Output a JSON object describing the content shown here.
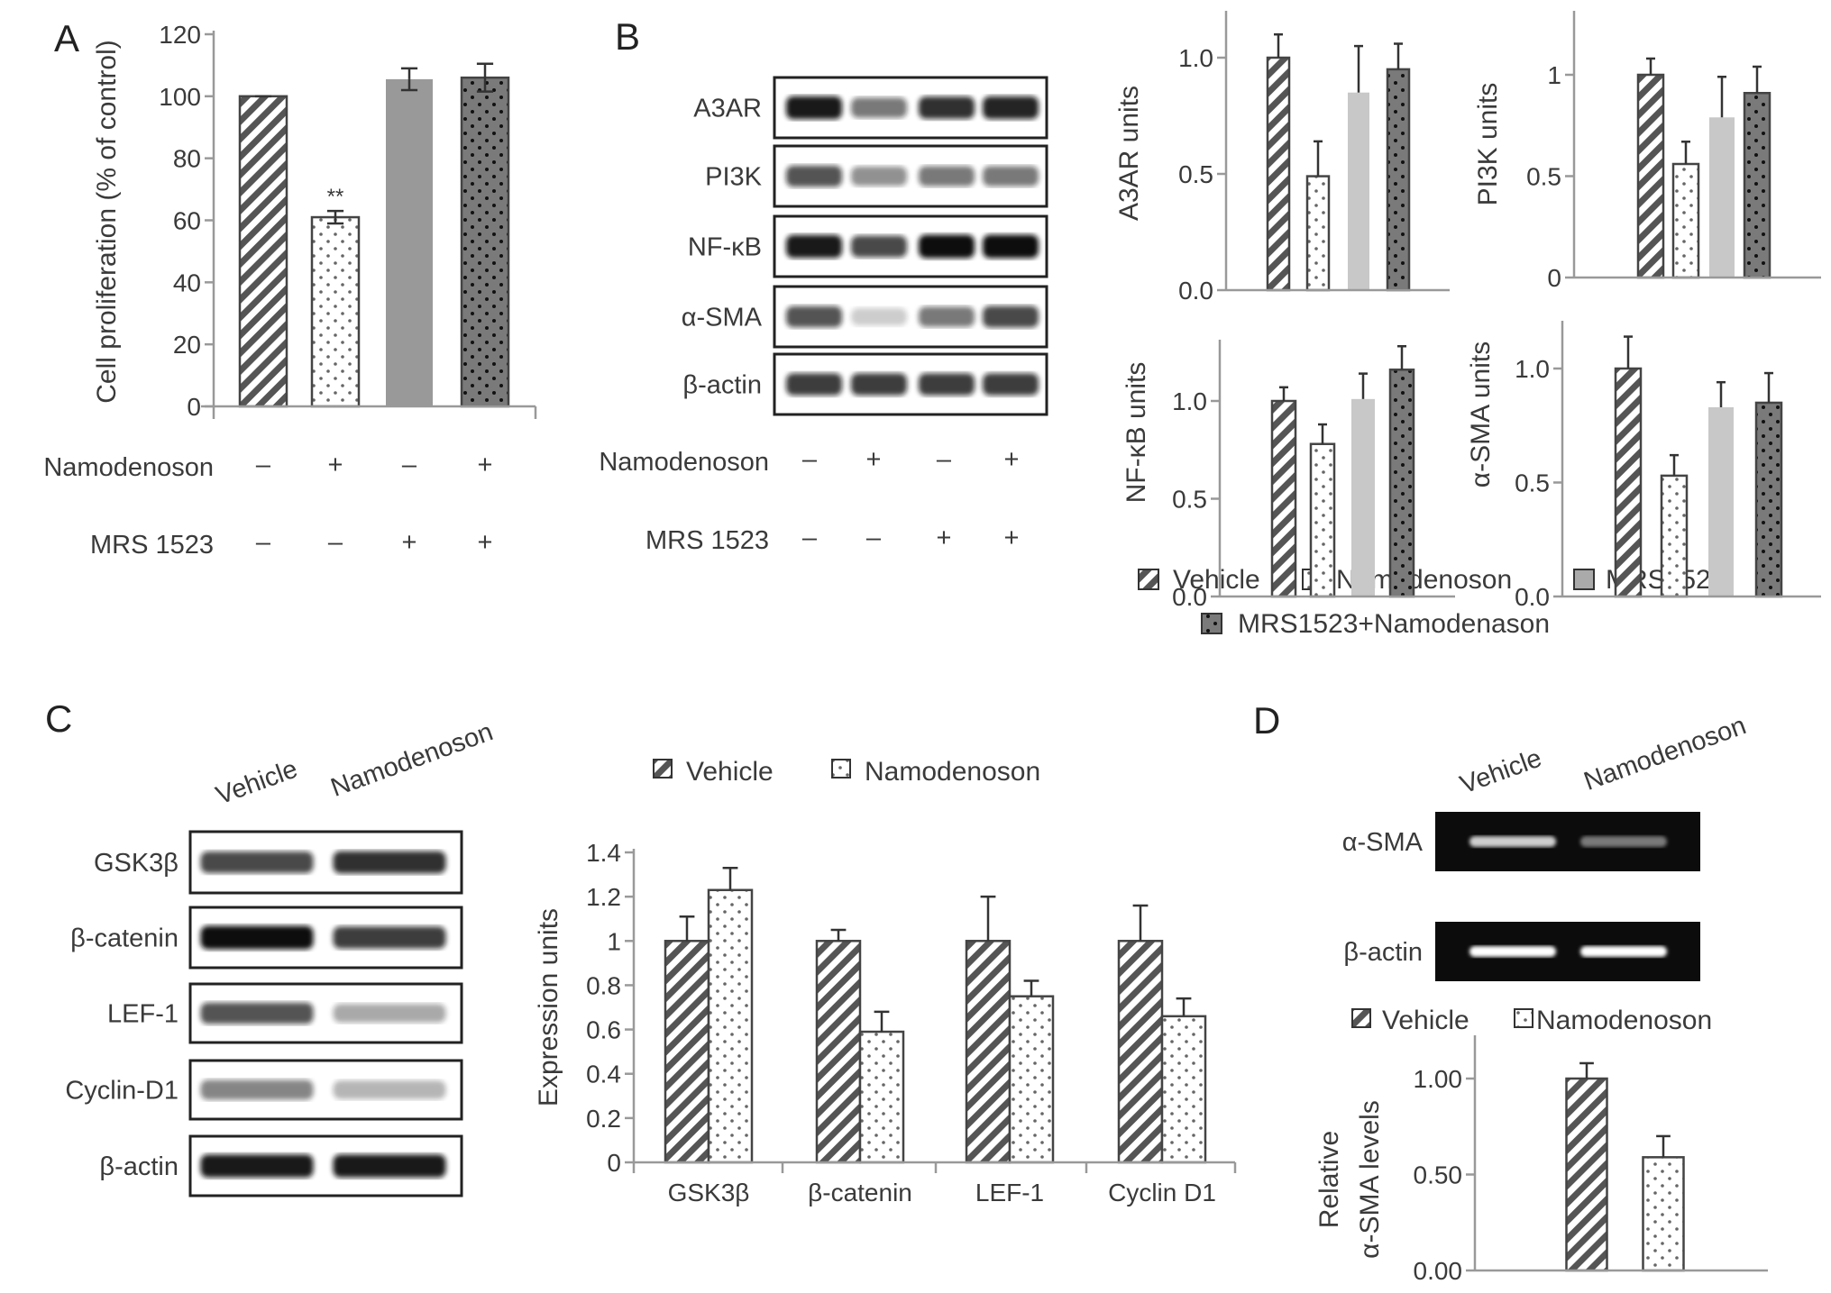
{
  "panels": {
    "A": {
      "letter": "A",
      "treatment_rows": [
        {
          "label": "Namodenoson",
          "marks": [
            "–",
            "+",
            "–",
            "+"
          ]
        },
        {
          "label": "MRS 1523",
          "marks": [
            "–",
            "–",
            "+",
            "+"
          ]
        }
      ],
      "significance": "**"
    },
    "B": {
      "letter": "B",
      "blot_labels": [
        "A3AR",
        "PI3K",
        "NF-κB",
        "α-SMA",
        "β-actin"
      ],
      "treatment_rows": [
        {
          "label": "Namodenoson",
          "marks": [
            "–",
            "+",
            "–",
            "+"
          ]
        },
        {
          "label": "MRS 1523",
          "marks": [
            "–",
            "–",
            "+",
            "+"
          ]
        }
      ],
      "legend": [
        "Vehicle",
        "Namodenoson",
        "MRS1523",
        "MRS1523+Namodenason"
      ]
    },
    "C": {
      "letter": "C",
      "lanes": [
        "Vehicle",
        "Namodenoson"
      ],
      "blot_labels": [
        "GSK3β",
        "β-catenin",
        "LEF-1",
        "Cyclin-D1",
        "β-actin"
      ],
      "legend": [
        "Vehicle",
        "Namodenoson"
      ]
    },
    "D": {
      "letter": "D",
      "lanes": [
        "Vehicle",
        "Namodenoson"
      ],
      "gel_labels": [
        "α-SMA",
        "β-actin"
      ],
      "legend": [
        "Vehicle",
        "Namodenoson"
      ]
    }
  },
  "chart_data": [
    {
      "id": "A",
      "type": "bar",
      "title": "",
      "xlabel": "",
      "ylabel": "Cell proliferation (% of control)",
      "ylim": [
        0,
        120
      ],
      "ticks": [
        "0",
        "20",
        "40",
        "60",
        "80",
        "100",
        "120"
      ],
      "tick_values": [
        0,
        20,
        40,
        60,
        80,
        100,
        120
      ],
      "categories": [
        "Vehicle",
        "Namodenoson",
        "MRS1523",
        "MRS1523+Namodenoson"
      ],
      "values": [
        100,
        61,
        105.5,
        106
      ],
      "errors": [
        0,
        2,
        3.5,
        4.5
      ],
      "grid": false
    },
    {
      "id": "B1",
      "type": "bar",
      "ylabel": "A3AR units",
      "ylim": [
        0,
        1.2
      ],
      "ticks": [
        "0.0",
        "0.5",
        "1.0"
      ],
      "tick_values": [
        0,
        0.5,
        1.0
      ],
      "categories": [
        "Vehicle",
        "Namodenoson",
        "MRS1523",
        "MRS1523+Namodenason"
      ],
      "values": [
        1.0,
        0.49,
        0.85,
        0.95
      ],
      "errors": [
        0.1,
        0.15,
        0.2,
        0.11
      ],
      "grid": false
    },
    {
      "id": "B2",
      "type": "bar",
      "ylabel": "PI3K units",
      "ylim": [
        0,
        1.3
      ],
      "ticks": [
        "0",
        "0.5",
        "1"
      ],
      "tick_values": [
        0,
        0.5,
        1
      ],
      "categories": [
        "Vehicle",
        "Namodenoson",
        "MRS1523",
        "MRS1523+Namodenason"
      ],
      "values": [
        1.0,
        0.56,
        0.79,
        0.91
      ],
      "errors": [
        0.08,
        0.11,
        0.2,
        0.13
      ],
      "grid": false
    },
    {
      "id": "B3",
      "type": "bar",
      "ylabel": "NF-κB units",
      "ylim": [
        0,
        1.3
      ],
      "ticks": [
        "0.0",
        "0.5",
        "1.0"
      ],
      "tick_values": [
        0,
        0.5,
        1.0
      ],
      "categories": [
        "Vehicle",
        "Namodenoson",
        "MRS1523",
        "MRS1523+Namodenason"
      ],
      "values": [
        1.0,
        0.78,
        1.01,
        1.16
      ],
      "errors": [
        0.07,
        0.1,
        0.13,
        0.12
      ],
      "grid": false
    },
    {
      "id": "B4",
      "type": "bar",
      "ylabel": "α-SMA units",
      "ylim": [
        0,
        1.2
      ],
      "ticks": [
        "0.0",
        "0.5",
        "1.0"
      ],
      "tick_values": [
        0,
        0.5,
        1.0
      ],
      "categories": [
        "Vehicle",
        "Namodenoson",
        "MRS1523",
        "MRS1523+Namodenason"
      ],
      "values": [
        1.0,
        0.53,
        0.83,
        0.85
      ],
      "errors": [
        0.14,
        0.09,
        0.11,
        0.13
      ],
      "grid": false
    },
    {
      "id": "C",
      "type": "bar",
      "ylabel": "Expression units",
      "ylim": [
        0,
        1.4
      ],
      "ticks": [
        "0",
        "0.2",
        "0.4",
        "0.6",
        "0.8",
        "1",
        "1.2",
        "1.4"
      ],
      "tick_values": [
        0,
        0.2,
        0.4,
        0.6,
        0.8,
        1,
        1.2,
        1.4
      ],
      "categories": [
        "GSK3β",
        "β-catenin",
        "LEF-1",
        "Cyclin D1"
      ],
      "series": [
        {
          "name": "Vehicle",
          "values": [
            1,
            1,
            1,
            1
          ],
          "errors": [
            0.11,
            0.05,
            0.2,
            0.16
          ]
        },
        {
          "name": "Namodenoson",
          "values": [
            1.23,
            0.59,
            0.75,
            0.66
          ],
          "errors": [
            0.1,
            0.09,
            0.07,
            0.08
          ]
        }
      ],
      "legend": "top",
      "grid": false
    },
    {
      "id": "D",
      "type": "bar",
      "ylabel": [
        "Relative",
        "α-SMA levels"
      ],
      "ylim": [
        0,
        1.2
      ],
      "ticks": [
        "0.00",
        "0.50",
        "1.00"
      ],
      "tick_values": [
        0,
        0.5,
        1.0
      ],
      "categories": [
        "Vehicle",
        "Namodenoson"
      ],
      "values": [
        1.0,
        0.59
      ],
      "errors": [
        0.08,
        0.11
      ],
      "legend": "top",
      "grid": false
    }
  ]
}
